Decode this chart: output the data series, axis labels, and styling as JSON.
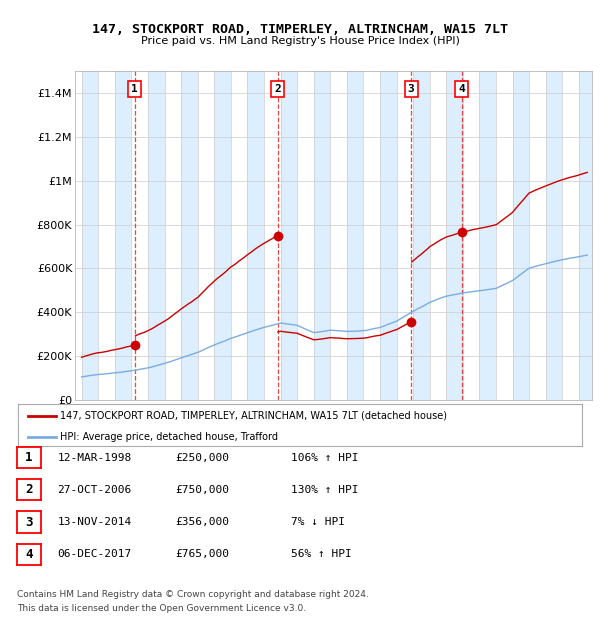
{
  "title1": "147, STOCKPORT ROAD, TIMPERLEY, ALTRINCHAM, WA15 7LT",
  "title2": "Price paid vs. HM Land Registry's House Price Index (HPI)",
  "yticks": [
    0,
    200000,
    400000,
    600000,
    800000,
    1000000,
    1200000,
    1400000
  ],
  "ytick_labels": [
    "£0",
    "£200K",
    "£400K",
    "£600K",
    "£800K",
    "£1M",
    "£1.2M",
    "£1.4M"
  ],
  "ylim": [
    0,
    1500000
  ],
  "xmin": 1994.6,
  "xmax": 2025.8,
  "sales": [
    {
      "date_num": 1998.19,
      "price": 250000,
      "label": "1"
    },
    {
      "date_num": 2006.82,
      "price": 750000,
      "label": "2"
    },
    {
      "date_num": 2014.87,
      "price": 356000,
      "label": "3"
    },
    {
      "date_num": 2017.92,
      "price": 765000,
      "label": "4"
    }
  ],
  "sale_info": [
    {
      "num": "1",
      "date": "12-MAR-1998",
      "price": "£250,000",
      "hpi": "106% ↑ HPI"
    },
    {
      "num": "2",
      "date": "27-OCT-2006",
      "price": "£750,000",
      "hpi": "130% ↑ HPI"
    },
    {
      "num": "3",
      "date": "13-NOV-2014",
      "price": "£356,000",
      "hpi": "7% ↓ HPI"
    },
    {
      "num": "4",
      "date": "06-DEC-2017",
      "price": "£765,000",
      "hpi": "56% ↑ HPI"
    }
  ],
  "legend_line1": "147, STOCKPORT ROAD, TIMPERLEY, ALTRINCHAM, WA15 7LT (detached house)",
  "legend_line2": "HPI: Average price, detached house, Trafford",
  "footnote1": "Contains HM Land Registry data © Crown copyright and database right 2024.",
  "footnote2": "This data is licensed under the Open Government Licence v3.0.",
  "red_color": "#cc0000",
  "blue_color": "#7aade0",
  "vline_color": "#dd3333",
  "grid_color": "#cccccc",
  "band_color": "#ddeeff"
}
